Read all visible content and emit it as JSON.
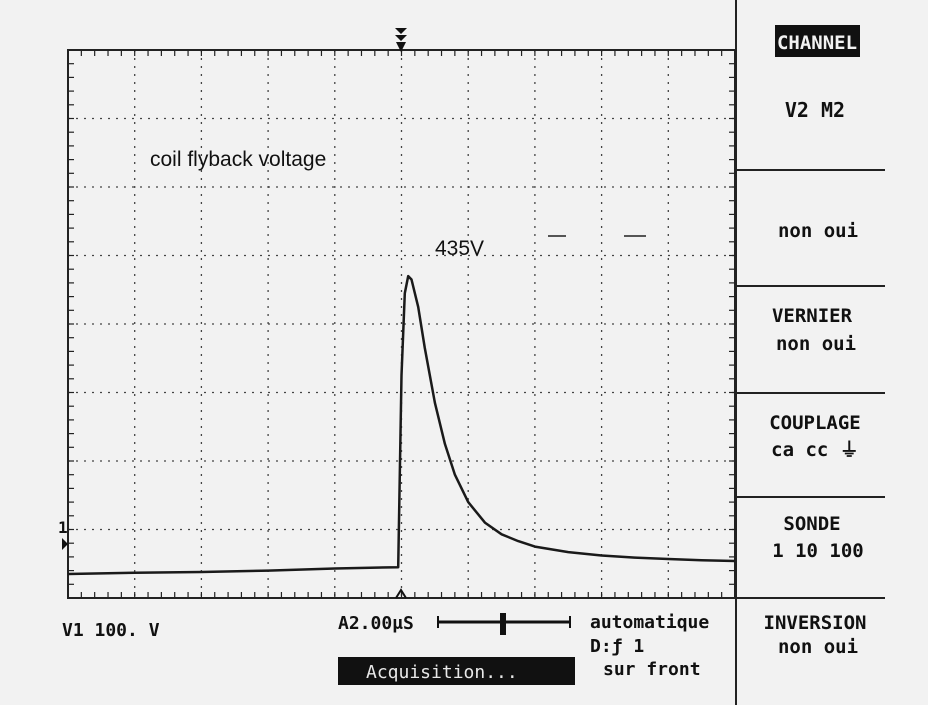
{
  "screen": {
    "menu_title": "CHANNEL",
    "menu": [
      {
        "title": "V2  M2",
        "options": ""
      },
      {
        "title": "",
        "options": "non  oui"
      },
      {
        "title": "VERNIER",
        "options": "non  oui"
      },
      {
        "title": "COUPLAGE",
        "options": "ca cc ⏚"
      },
      {
        "title": "SONDE",
        "options": "1 10 100"
      },
      {
        "title": "INVERSION",
        "options": "non  oui"
      }
    ],
    "status": {
      "channel_scale": "V1 100. V",
      "timebase": "A2.00μS",
      "trigger_mode": "automatique",
      "trigger_source": "D:ƒ 1",
      "trigger_edge": "sur front",
      "acquisition": "Acquisition..."
    },
    "channel_marker": "1",
    "colors": {
      "background": "#f2f2f2",
      "trace": "#1a1a1a",
      "grid": "#333333",
      "acq_bg": "#111111"
    }
  },
  "chart_data": {
    "type": "line",
    "title": "",
    "annotations": [
      "coil flyback voltage",
      "435V"
    ],
    "xlabel": "",
    "ylabel": "",
    "divisions_x": 10,
    "divisions_y": 8,
    "x_per_div_us": 2,
    "y_per_div_V": 100,
    "xlim_us": [
      0,
      20
    ],
    "ylim_V": [
      -35,
      765
    ],
    "grid": true,
    "series": [
      {
        "x_us": [
          0,
          2,
          4,
          6,
          8,
          9.9,
          10.0,
          10.1,
          10.2,
          10.3,
          10.5,
          10.7,
          11.0,
          11.3,
          11.6,
          12.0,
          12.5,
          13.0,
          13.5,
          14.0,
          15.0,
          16.0,
          17.0,
          18.0,
          19.0,
          20.0
        ],
        "y_V": [
          0,
          2,
          3,
          5,
          8,
          10,
          290,
          410,
          435,
          430,
          390,
          330,
          250,
          190,
          145,
          105,
          75,
          58,
          48,
          40,
          32,
          27,
          24,
          22,
          20,
          19
        ]
      }
    ]
  }
}
